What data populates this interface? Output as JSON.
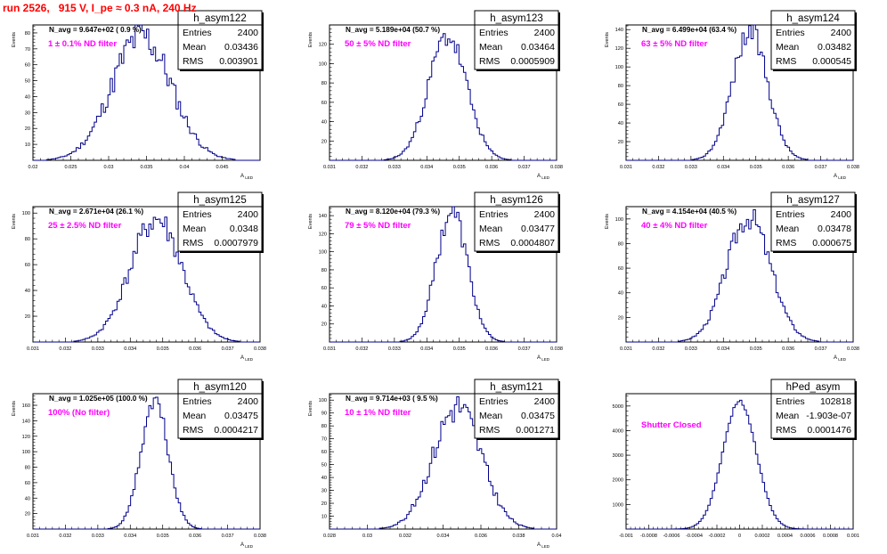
{
  "run_title": "run 2526,   915 V, I_pe ≈ 0.3 nA, 240 Hz",
  "colors": {
    "title": "#ff0000",
    "hist": "#00008b",
    "annotation": "#ff00ff",
    "axis": "#000000"
  },
  "stats_labels": {
    "entries": "Entries",
    "mean": "Mean",
    "rms": "RMS"
  },
  "chart_data": [
    {
      "type": "histogram",
      "name": "h_asym122",
      "title": "N_avg = 9.647e+02 ( 0.9 %)",
      "annotation": "1 ± 0.1% ND filter",
      "xlabel": "A_LED",
      "ylabel": "Events",
      "xlim": [
        0.02,
        0.05
      ],
      "ylim": [
        0,
        85
      ],
      "xticks": [
        0.02,
        0.025,
        0.03,
        0.035,
        0.04,
        0.045
      ],
      "xtick_labels": [
        "0.02",
        "0.025",
        "0.03",
        "0.035",
        "0.04",
        "0.045"
      ],
      "yticks": [
        10,
        20,
        30,
        40,
        50,
        60,
        70,
        80
      ],
      "stats": {
        "entries": "2400",
        "mean": "0.03436",
        "rms": "0.003901"
      },
      "mean": 0.03436,
      "rms": 0.003901,
      "peak": 78,
      "noise": 0.16,
      "seed": 11
    },
    {
      "type": "histogram",
      "name": "h_asym123",
      "title": "N_avg = 5.189e+04 (50.7 %)",
      "annotation": "50 ± 5% ND filter",
      "xlabel": "A_LED",
      "ylabel": "Events",
      "xlim": [
        0.031,
        0.038
      ],
      "ylim": [
        0,
        140
      ],
      "xticks": [
        0.031,
        0.032,
        0.033,
        0.034,
        0.035,
        0.036,
        0.037,
        0.038
      ],
      "xtick_labels": [
        "0.031",
        "0.032",
        "0.033",
        "0.034",
        "0.035",
        "0.036",
        "0.037",
        "0.038"
      ],
      "yticks": [
        20,
        40,
        60,
        80,
        100,
        120
      ],
      "stats": {
        "entries": "2400",
        "mean": "0.03464",
        "rms": "0.0005909"
      },
      "mean": 0.03464,
      "rms": 0.0005909,
      "peak": 128,
      "noise": 0.1,
      "seed": 23
    },
    {
      "type": "histogram",
      "name": "h_asym124",
      "title": "N_avg = 6.499e+04 (63.4 %)",
      "annotation": "63 ± 5% ND filter",
      "xlabel": "A_LED",
      "ylabel": "Events",
      "xlim": [
        0.031,
        0.038
      ],
      "ylim": [
        0,
        145
      ],
      "xticks": [
        0.031,
        0.032,
        0.033,
        0.034,
        0.035,
        0.036,
        0.037,
        0.038
      ],
      "xtick_labels": [
        "0.031",
        "0.032",
        "0.033",
        "0.034",
        "0.035",
        "0.036",
        "0.037",
        "0.038"
      ],
      "yticks": [
        20,
        40,
        60,
        80,
        100,
        120,
        140
      ],
      "stats": {
        "entries": "2400",
        "mean": "0.03482",
        "rms": "0.000545"
      },
      "mean": 0.03482,
      "rms": 0.000545,
      "peak": 138,
      "noise": 0.1,
      "seed": 37
    },
    {
      "type": "histogram",
      "name": "h_asym125",
      "title": "N_avg = 2.671e+04 (26.1 %)",
      "annotation": "25 ± 2.5% ND filter",
      "xlabel": "A_LED",
      "ylabel": "Events",
      "xlim": [
        0.031,
        0.038
      ],
      "ylim": [
        0,
        105
      ],
      "xticks": [
        0.031,
        0.032,
        0.033,
        0.034,
        0.035,
        0.036,
        0.037,
        0.038
      ],
      "xtick_labels": [
        "0.031",
        "0.032",
        "0.033",
        "0.034",
        "0.035",
        "0.036",
        "0.037",
        "0.038"
      ],
      "yticks": [
        20,
        40,
        60,
        80,
        100
      ],
      "stats": {
        "entries": "2400",
        "mean": "0.0348",
        "rms": "0.0007979"
      },
      "mean": 0.0348,
      "rms": 0.0007979,
      "peak": 95,
      "noise": 0.12,
      "seed": 41
    },
    {
      "type": "histogram",
      "name": "h_asym126",
      "title": "N_avg = 8.120e+04 (79.3 %)",
      "annotation": "79 ± 5% ND filter",
      "xlabel": "A_LED",
      "ylabel": "Events",
      "xlim": [
        0.031,
        0.038
      ],
      "ylim": [
        0,
        150
      ],
      "xticks": [
        0.031,
        0.032,
        0.033,
        0.034,
        0.035,
        0.036,
        0.037,
        0.038
      ],
      "xtick_labels": [
        "0.031",
        "0.032",
        "0.033",
        "0.034",
        "0.035",
        "0.036",
        "0.037",
        "0.038"
      ],
      "yticks": [
        20,
        40,
        60,
        80,
        100,
        120,
        140
      ],
      "stats": {
        "entries": "2400",
        "mean": "0.03477",
        "rms": "0.0004807"
      },
      "mean": 0.03477,
      "rms": 0.0004807,
      "peak": 145,
      "noise": 0.1,
      "seed": 53
    },
    {
      "type": "histogram",
      "name": "h_asym127",
      "title": "N_avg = 4.154e+04 (40.5 %)",
      "annotation": "40 ± 4% ND filter",
      "xlabel": "A_LED",
      "ylabel": "Events",
      "xlim": [
        0.031,
        0.038
      ],
      "ylim": [
        0,
        110
      ],
      "xticks": [
        0.031,
        0.032,
        0.033,
        0.034,
        0.035,
        0.036,
        0.037,
        0.038
      ],
      "xtick_labels": [
        "0.031",
        "0.032",
        "0.033",
        "0.034",
        "0.035",
        "0.036",
        "0.037",
        "0.038"
      ],
      "yticks": [
        20,
        40,
        60,
        80,
        100
      ],
      "stats": {
        "entries": "2400",
        "mean": "0.03478",
        "rms": "0.000675"
      },
      "mean": 0.03478,
      "rms": 0.000675,
      "peak": 102,
      "noise": 0.1,
      "seed": 67
    },
    {
      "type": "histogram",
      "name": "h_asym120",
      "title": "N_avg = 1.025e+05 (100.0 %)",
      "annotation": "100% (No filter)",
      "xlabel": "A_LED",
      "ylabel": "Events",
      "xlim": [
        0.031,
        0.038
      ],
      "ylim": [
        0,
        175
      ],
      "xticks": [
        0.031,
        0.032,
        0.033,
        0.034,
        0.035,
        0.036,
        0.037,
        0.038
      ],
      "xtick_labels": [
        "0.031",
        "0.032",
        "0.033",
        "0.034",
        "0.035",
        "0.036",
        "0.037",
        "0.038"
      ],
      "yticks": [
        20,
        40,
        60,
        80,
        100,
        120,
        140,
        160
      ],
      "stats": {
        "entries": "2400",
        "mean": "0.03475",
        "rms": "0.0004217"
      },
      "mean": 0.03475,
      "rms": 0.0004217,
      "peak": 165,
      "noise": 0.08,
      "seed": 71
    },
    {
      "type": "histogram",
      "name": "h_asym121",
      "title": "N_avg = 9.714e+03 ( 9.5 %)",
      "annotation": "10 ± 1% ND filter",
      "xlabel": "A_LED",
      "ylabel": "Events",
      "xlim": [
        0.028,
        0.04
      ],
      "ylim": [
        0,
        105
      ],
      "xticks": [
        0.028,
        0.03,
        0.032,
        0.034,
        0.036,
        0.038,
        0.04
      ],
      "xtick_labels": [
        "0.028",
        "0.03",
        "0.032",
        "0.034",
        "0.036",
        "0.038",
        "0.04"
      ],
      "yticks": [
        10,
        20,
        30,
        40,
        50,
        60,
        70,
        80,
        90,
        100
      ],
      "stats": {
        "entries": "2400",
        "mean": "0.03475",
        "rms": "0.001271"
      },
      "mean": 0.03475,
      "rms": 0.001271,
      "peak": 95,
      "noise": 0.14,
      "seed": 83
    },
    {
      "type": "histogram",
      "name": "hPed_asym",
      "title": "",
      "annotation": "Shutter Closed",
      "xlabel": "",
      "ylabel": "",
      "xlim": [
        -0.001,
        0.001
      ],
      "ylim": [
        0,
        5500
      ],
      "xticks": [
        -0.001,
        -0.0008,
        -0.0006,
        -0.0004,
        -0.0002,
        0,
        0.0002,
        0.0004,
        0.0006,
        0.0008,
        0.001
      ],
      "xtick_labels": [
        "-0.001",
        "-0.0008",
        "-0.0006",
        "-0.0004",
        "-0.0002",
        "0",
        "0.0002",
        "0.0004",
        "0.0006",
        "0.0008",
        "0.001"
      ],
      "yticks": [
        1000,
        2000,
        3000,
        4000,
        5000
      ],
      "stats": {
        "entries": "102818",
        "mean": "-1.903e-07",
        "rms": "0.0001476"
      },
      "mean": -1.9e-07,
      "rms": 0.0001476,
      "peak": 5180,
      "noise": 0.015,
      "seed": 97
    }
  ]
}
